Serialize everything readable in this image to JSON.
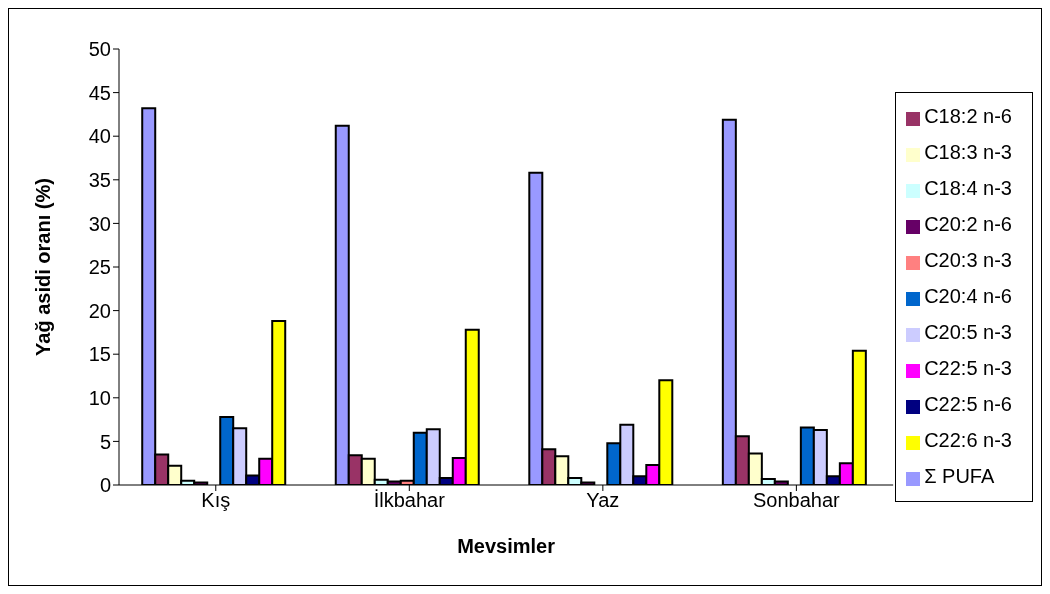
{
  "chart_data": {
    "type": "bar",
    "xlabel": "Mevsimler",
    "ylabel": "Yağ asidi oranı (%)",
    "categories": [
      "Kış",
      "İlkbahar",
      "Yaz",
      "Sonbahar"
    ],
    "series": [
      {
        "name": "Σ PUFA",
        "color": "#9999ff",
        "values": [
          43.2,
          41.2,
          35.8,
          41.9
        ]
      },
      {
        "name": "C18:2 n-6",
        "color": "#993366",
        "values": [
          3.5,
          3.4,
          4.1,
          5.6
        ]
      },
      {
        "name": "C18:3 n-3",
        "color": "#ffffcc",
        "values": [
          2.2,
          3.0,
          3.3,
          3.6
        ]
      },
      {
        "name": "C18:4 n-3",
        "color": "#ccffff",
        "values": [
          0.5,
          0.6,
          0.8,
          0.7
        ]
      },
      {
        "name": "C20:2 n-6",
        "color": "#660066",
        "values": [
          0.3,
          0.4,
          0.3,
          0.4
        ]
      },
      {
        "name": "C20:3 n-3",
        "color": "#ff8080",
        "values": [
          0,
          0.5,
          null,
          null
        ]
      },
      {
        "name": "C20:4 n-6",
        "color": "#0066cc",
        "values": [
          7.8,
          6.0,
          4.8,
          6.6
        ]
      },
      {
        "name": "C20:5 n-3",
        "color": "#ccccff",
        "values": [
          6.5,
          6.4,
          6.9,
          6.3
        ]
      },
      {
        "name": "C22:5 n-6",
        "color": "#000080",
        "values": [
          1.1,
          0.8,
          1.0,
          1.0
        ]
      },
      {
        "name": "C22:5 n-3",
        "color": "#ff00ff",
        "values": [
          3.0,
          3.1,
          2.3,
          2.5
        ]
      },
      {
        "name": "C22:6 n-3",
        "color": "#ffff00",
        "values": [
          18.8,
          17.8,
          12.0,
          15.4
        ]
      }
    ],
    "ylim": [
      0,
      50
    ],
    "yticks": [
      0,
      5,
      10,
      15,
      20,
      25,
      30,
      35,
      40,
      45,
      50
    ],
    "grid": false,
    "legend": "right"
  }
}
